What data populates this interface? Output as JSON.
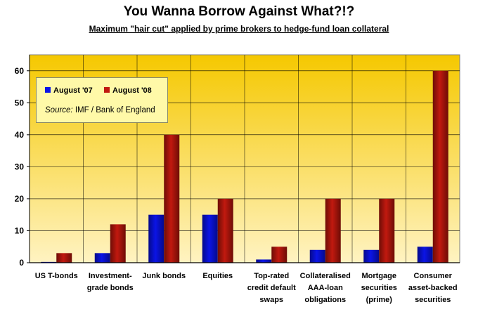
{
  "title": "You Wanna Borrow Against What?!?",
  "subtitle": "Maximum \"hair cut\" applied by prime brokers to hedge-fund loan collateral",
  "source_label": "Source:",
  "source_text": "IMF / Bank of England",
  "colors": {
    "plot_top": "#f5c800",
    "plot_bottom": "#fff3c2",
    "series1": "#0b14e6",
    "series2": "#c1190f"
  },
  "chart_data": {
    "type": "bar",
    "title": "You Wanna Borrow Against What?!?",
    "subtitle": "Maximum \"hair cut\" applied by prime brokers to hedge-fund loan collateral",
    "categories": [
      [
        "US T-bonds"
      ],
      [
        "Investment-",
        "grade bonds"
      ],
      [
        "Junk bonds"
      ],
      [
        "Equities"
      ],
      [
        "Top-rated",
        "credit default",
        "swaps"
      ],
      [
        "Collateralised",
        "AAA-loan",
        "obligations"
      ],
      [
        "Mortgage",
        "securities",
        "(prime)"
      ],
      [
        "Consumer",
        "asset-backed",
        "securities"
      ]
    ],
    "series": [
      {
        "name": "August '07",
        "values": [
          0.25,
          3,
          15,
          15,
          1,
          4,
          4,
          5
        ]
      },
      {
        "name": "August '08",
        "values": [
          3,
          12,
          40,
          20,
          5,
          20,
          20,
          60
        ]
      }
    ],
    "ylim": [
      0,
      65
    ],
    "yticks": [
      0,
      10,
      20,
      30,
      40,
      50,
      60
    ],
    "xlabel": "",
    "ylabel": "",
    "grid": true,
    "legend": "top-left"
  }
}
